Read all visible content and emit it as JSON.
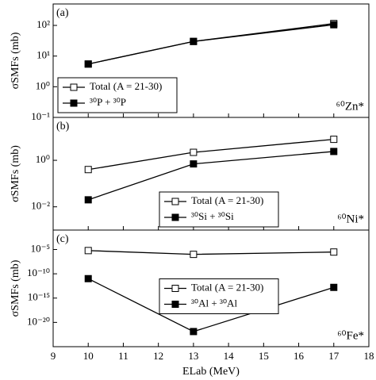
{
  "chart_data": [
    {
      "type": "line",
      "panel_label": "(a)",
      "annotation": "⁶⁰Zn*",
      "y_label": "σSMFs (mb)",
      "log_y": true,
      "x": [
        10,
        13,
        17
      ],
      "xlim": [
        9,
        18
      ],
      "xticks": [
        9,
        10,
        11,
        12,
        13,
        14,
        15,
        16,
        17,
        18
      ],
      "ylim": [
        0.1,
        500
      ],
      "yticks": [
        {
          "value": 0.1,
          "label": "10⁻¹"
        },
        {
          "value": 1,
          "label": "10⁰"
        },
        {
          "value": 10,
          "label": "10¹"
        },
        {
          "value": 100,
          "label": "10²"
        }
      ],
      "legend": "lower left",
      "series": [
        {
          "name": "Total (A = 21-30)",
          "color": "#000000",
          "marker_fill": "#ffffff",
          "values": [
            5.5,
            30,
            115
          ]
        },
        {
          "name": "³⁰P + ³⁰P",
          "color": "#000000",
          "marker_fill": "#000000",
          "values": [
            5.5,
            30,
            105
          ]
        }
      ]
    },
    {
      "type": "line",
      "panel_label": "(b)",
      "annotation": "⁶⁰Ni*",
      "y_label": "σSMFs (mb)",
      "log_y": true,
      "x": [
        10,
        13,
        17
      ],
      "xlim": [
        9,
        18
      ],
      "xticks": [
        9,
        10,
        11,
        12,
        13,
        14,
        15,
        16,
        17,
        18
      ],
      "ylim": [
        0.001,
        70
      ],
      "yticks": [
        {
          "value": 0.01,
          "label": "10⁻²"
        },
        {
          "value": 1,
          "label": "10⁰"
        }
      ],
      "legend": "lower center",
      "series": [
        {
          "name": "Total (A = 21-30)",
          "color": "#000000",
          "marker_fill": "#ffffff",
          "values": [
            0.4,
            2.2,
            8
          ]
        },
        {
          "name": "³⁰Si + ³⁰Si",
          "color": "#000000",
          "marker_fill": "#000000",
          "values": [
            0.02,
            0.7,
            2.4
          ]
        }
      ]
    },
    {
      "type": "line",
      "panel_label": "(c)",
      "annotation": "⁶⁰Fe*",
      "y_label": "σSMFs (mb)",
      "x_label": "ELab (MeV)",
      "log_y": true,
      "x": [
        10,
        13,
        17
      ],
      "xlim": [
        9,
        18
      ],
      "xticks": [
        9,
        10,
        11,
        12,
        13,
        14,
        15,
        16,
        17,
        18
      ],
      "ylim": [
        1e-25,
        0.1
      ],
      "yticks": [
        {
          "value": 1e-20,
          "label": "10⁻²⁰"
        },
        {
          "value": 1e-15,
          "label": "10⁻¹⁵"
        },
        {
          "value": 1e-10,
          "label": "10⁻¹⁰"
        },
        {
          "value": 1e-05,
          "label": "10⁻⁵"
        }
      ],
      "legend": "center",
      "series": [
        {
          "name": "Total (A = 21-30)",
          "color": "#000000",
          "marker_fill": "#ffffff",
          "values": [
            6e-06,
            1e-06,
            3e-06
          ]
        },
        {
          "name": "³⁰Al + ³⁰Al",
          "color": "#000000",
          "marker_fill": "#000000",
          "values": [
            1e-11,
            1.3e-22,
            1.6e-13
          ]
        }
      ]
    }
  ]
}
